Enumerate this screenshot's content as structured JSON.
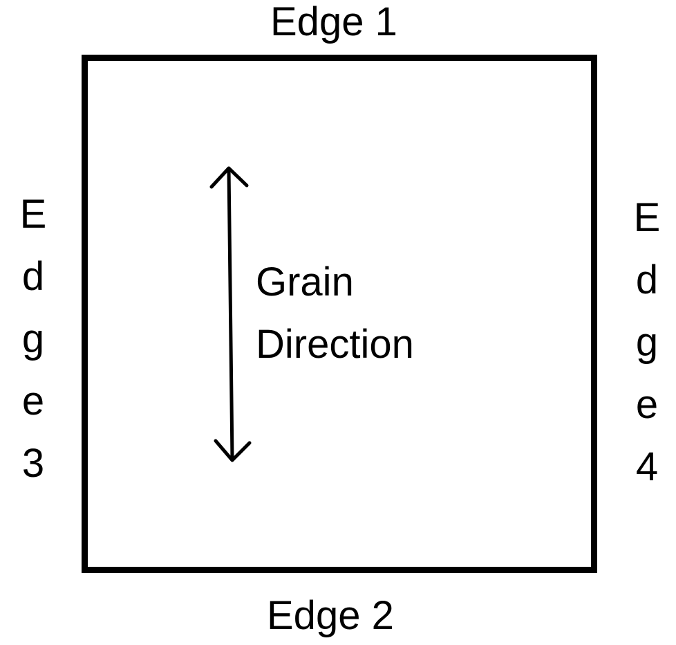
{
  "edges": {
    "top": "Edge 1",
    "bottom": "Edge 2",
    "left": "Edge 3",
    "right": "Edge 4"
  },
  "grain": {
    "line1": "Grain",
    "line2": "Direction"
  },
  "colors": {
    "stroke": "#000000",
    "background": "#ffffff"
  }
}
